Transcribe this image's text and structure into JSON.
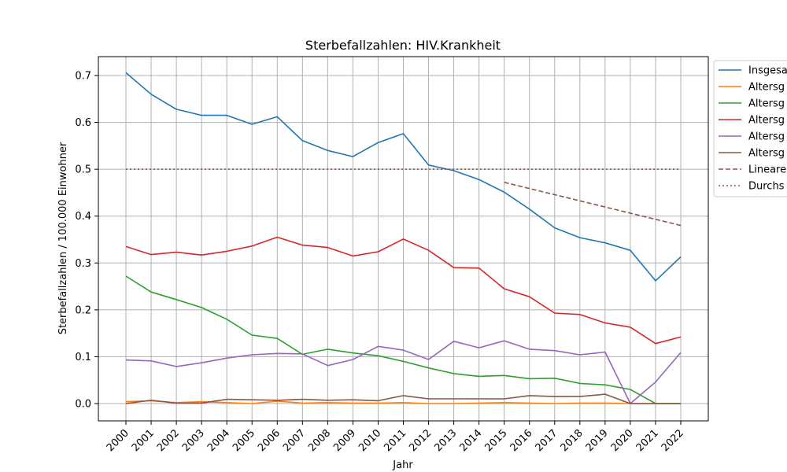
{
  "chart_data": {
    "type": "line",
    "title": "Sterbefallzahlen: HIV.Krankheit",
    "xlabel": "Jahr",
    "ylabel": "Sterbefallzahlen / 100.000 Einwohner",
    "ylim": [
      -0.035,
      0.74
    ],
    "yticks": [
      0.0,
      0.1,
      0.2,
      0.3,
      0.4,
      0.5,
      0.6,
      0.7
    ],
    "grid": true,
    "legend_position": "right, clipped at the image edge",
    "x": [
      2000,
      2001,
      2002,
      2003,
      2004,
      2005,
      2006,
      2007,
      2008,
      2009,
      2010,
      2011,
      2012,
      2013,
      2014,
      2015,
      2016,
      2017,
      2018,
      2019,
      2020,
      2021,
      2022
    ],
    "series": [
      {
        "name": "Insgesa",
        "color": "#1f77b4",
        "style": "solid",
        "x": [
          2000,
          2001,
          2002,
          2003,
          2004,
          2005,
          2006,
          2007,
          2008,
          2009,
          2010,
          2011,
          2012,
          2013,
          2014,
          2015,
          2016,
          2017,
          2018,
          2019,
          2020,
          2021,
          2022
        ],
        "values": [
          0.706,
          0.66,
          0.628,
          0.615,
          0.615,
          0.596,
          0.612,
          0.561,
          0.54,
          0.527,
          0.557,
          0.576,
          0.509,
          0.497,
          0.478,
          0.451,
          0.415,
          0.375,
          0.354,
          0.343,
          0.327,
          0.262,
          0.313
        ]
      },
      {
        "name": "Altersg",
        "color": "#ff7f0e",
        "style": "solid",
        "x": [
          2000,
          2001,
          2002,
          2003,
          2004,
          2005,
          2006,
          2007,
          2008,
          2009,
          2010,
          2011,
          2012,
          2013,
          2014,
          2015,
          2016,
          2017,
          2018,
          2019,
          2020,
          2021,
          2022
        ],
        "values": [
          0.004,
          0.006,
          0.002,
          0.004,
          0.002,
          0.0,
          0.005,
          0.001,
          0.002,
          0.001,
          0.001,
          0.002,
          0.0,
          0.0,
          0.001,
          0.002,
          0.001,
          0.0,
          0.001,
          0.001,
          0.0,
          0.0,
          0.0
        ]
      },
      {
        "name": "Altersg",
        "color": "#2ca02c",
        "style": "solid",
        "x": [
          2000,
          2001,
          2002,
          2003,
          2004,
          2005,
          2006,
          2007,
          2008,
          2009,
          2010,
          2011,
          2012,
          2013,
          2014,
          2015,
          2016,
          2017,
          2018,
          2019,
          2020,
          2021,
          2022
        ],
        "values": [
          0.272,
          0.238,
          0.222,
          0.205,
          0.18,
          0.146,
          0.139,
          0.105,
          0.116,
          0.108,
          0.102,
          0.09,
          0.076,
          0.064,
          0.058,
          0.06,
          0.053,
          0.054,
          0.043,
          0.04,
          0.03,
          0.0,
          0.0
        ]
      },
      {
        "name": "Altersg",
        "color": "#d62728",
        "style": "solid",
        "x": [
          2000,
          2001,
          2002,
          2003,
          2004,
          2005,
          2006,
          2007,
          2008,
          2009,
          2010,
          2011,
          2012,
          2013,
          2014,
          2015,
          2016,
          2017,
          2018,
          2019,
          2020,
          2021,
          2022
        ],
        "values": [
          0.335,
          0.318,
          0.323,
          0.317,
          0.325,
          0.336,
          0.355,
          0.338,
          0.333,
          0.315,
          0.324,
          0.351,
          0.327,
          0.29,
          0.289,
          0.245,
          0.228,
          0.193,
          0.19,
          0.172,
          0.163,
          0.128,
          0.142
        ]
      },
      {
        "name": "Altersg",
        "color": "#9467bd",
        "style": "solid",
        "x": [
          2000,
          2001,
          2002,
          2003,
          2004,
          2005,
          2006,
          2007,
          2008,
          2009,
          2010,
          2011,
          2012,
          2013,
          2014,
          2015,
          2016,
          2017,
          2018,
          2019,
          2020,
          2021,
          2022
        ],
        "values": [
          0.093,
          0.091,
          0.079,
          0.087,
          0.097,
          0.104,
          0.107,
          0.106,
          0.081,
          0.094,
          0.122,
          0.114,
          0.094,
          0.133,
          0.119,
          0.134,
          0.116,
          0.113,
          0.104,
          0.11,
          0.0,
          0.046,
          0.109
        ]
      },
      {
        "name": "Altersg",
        "color": "#8c564b",
        "style": "solid",
        "x": [
          2000,
          2001,
          2002,
          2003,
          2004,
          2005,
          2006,
          2007,
          2008,
          2009,
          2010,
          2011,
          2012,
          2013,
          2014,
          2015,
          2016,
          2017,
          2018,
          2019,
          2020,
          2021,
          2022
        ],
        "values": [
          0.0,
          0.007,
          0.001,
          0.001,
          0.009,
          0.008,
          0.007,
          0.009,
          0.007,
          0.008,
          0.006,
          0.017,
          0.01,
          0.01,
          0.01,
          0.01,
          0.017,
          0.015,
          0.015,
          0.02,
          0.0,
          0.0,
          0.0
        ]
      },
      {
        "name": "Lineare",
        "color": "#8c564b",
        "style": "dashed",
        "x": [
          2015,
          2022
        ],
        "values": [
          0.472,
          0.38
        ]
      },
      {
        "name": "Durchs",
        "color": "#8c564b",
        "style": "dotted",
        "x": [
          2000,
          2022
        ],
        "values": [
          0.5,
          0.5
        ]
      }
    ]
  }
}
